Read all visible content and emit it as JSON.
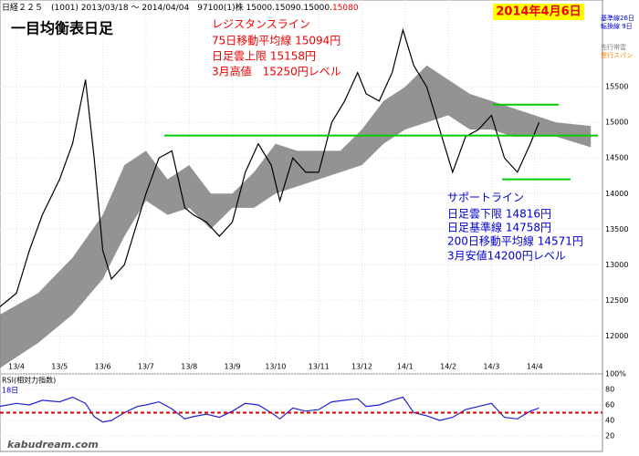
{
  "header": {
    "main": "日経２２５　(1001)  2013/03/18 ～ 2014/04/04　97100(1)株 15000.15090.15000.",
    "last": "15080"
  },
  "date": "2014年4月6日",
  "watermark": "kabudream.com",
  "resistance": [
    "レジスタンスライン",
    "75日移動平均線 15094円",
    "日足雲上限 15158円",
    "3月高値　15250円レベル"
  ],
  "support": [
    "サポートライン",
    "日足雲下限 14816円",
    "日足基準線 14758円",
    "200日移動平均線 14571円",
    "3月安値14200円レベル"
  ],
  "chart_data": [
    {
      "type": "line",
      "title": "一目均衡表日足",
      "color": "#000000",
      "legend": [
        {
          "label": "基準線26日",
          "color": "#0000cc"
        },
        {
          "label": "転換線 9日",
          "color": "#0000cc"
        },
        {
          "label": "先行帯雲",
          "color": "#808080"
        },
        {
          "label": "遅行スパン",
          "color": "#ff8800"
        }
      ],
      "x": [
        3.6,
        4.0,
        4.3,
        4.6,
        5.0,
        5.3,
        5.6,
        5.8,
        6.0,
        6.2,
        6.5,
        6.8,
        7.0,
        7.3,
        7.6,
        7.9,
        8.1,
        8.4,
        8.7,
        9.0,
        9.3,
        9.6,
        9.9,
        10.1,
        10.4,
        10.7,
        11.0,
        11.3,
        11.6,
        11.9,
        12.1,
        12.4,
        12.7,
        12.95,
        13.2,
        13.5,
        13.8,
        14.1,
        14.4,
        14.7,
        15.0,
        15.3,
        15.6,
        15.9,
        16.1
      ],
      "values": [
        12400,
        12600,
        13200,
        13700,
        14200,
        14700,
        15600,
        14500,
        13200,
        12800,
        13000,
        13600,
        14000,
        14500,
        14600,
        13800,
        13700,
        13600,
        13400,
        13600,
        14300,
        14700,
        14400,
        13900,
        14500,
        14300,
        14300,
        15000,
        15300,
        15700,
        15400,
        15300,
        15700,
        16300,
        15800,
        15500,
        14900,
        14300,
        14800,
        14900,
        15100,
        14500,
        14300,
        14700,
        15000
      ],
      "cloud": {
        "x": [
          3.62,
          4.5,
          5.3,
          6.0,
          6.5,
          7.0,
          7.5,
          8.0,
          8.5,
          9.0,
          9.5,
          10.0,
          10.5,
          11.0,
          11.5,
          12.0,
          12.5,
          13.0,
          13.5,
          14.0,
          14.5,
          15.0,
          15.5,
          16.0,
          16.5,
          17.3
        ],
        "upper": [
          12300,
          12600,
          13100,
          13700,
          14400,
          14600,
          14200,
          14400,
          14000,
          14000,
          14300,
          14700,
          14600,
          14600,
          14600,
          14900,
          15300,
          15500,
          15800,
          15600,
          15400,
          15300,
          15200,
          15100,
          15000,
          14950
        ],
        "lower": [
          11550,
          11900,
          12300,
          12800,
          13400,
          13900,
          13700,
          13800,
          13500,
          13800,
          13800,
          14000,
          14100,
          14200,
          14300,
          14400,
          14700,
          14900,
          15000,
          15100,
          14900,
          14900,
          14800,
          14800,
          14800,
          14650
        ]
      },
      "levels": [
        {
          "value": 14816,
          "color": "#00cc00"
        },
        {
          "value": 15250,
          "color": "#00cc00"
        },
        {
          "value": 14200,
          "color": "#00cc00"
        }
      ],
      "xlim": [
        3.62,
        17.57
      ],
      "ylim": [
        11530,
        16720
      ],
      "yticks": [
        12000,
        12500,
        13000,
        13500,
        14000,
        14500,
        15000,
        15500
      ],
      "xticks": [
        {
          "value": 4,
          "label": "13/4"
        },
        {
          "value": 5,
          "label": "13/5"
        },
        {
          "value": 6,
          "label": "13/6"
        },
        {
          "value": 7,
          "label": "13/7"
        },
        {
          "value": 8,
          "label": "13/8"
        },
        {
          "value": 9,
          "label": "13/9"
        },
        {
          "value": 10,
          "label": "13/10"
        },
        {
          "value": 11,
          "label": "13/11"
        },
        {
          "value": 12,
          "label": "13/12"
        },
        {
          "value": 13,
          "label": "14/1"
        },
        {
          "value": 14,
          "label": "14/2"
        },
        {
          "value": 15,
          "label": "14/3"
        },
        {
          "value": 16,
          "label": "14/4"
        }
      ],
      "grid": true
    },
    {
      "type": "line",
      "title": "RSI(相対力指数)",
      "subtitle": "18日",
      "color": "#2222cc",
      "x": [
        3.6,
        4.0,
        4.3,
        4.6,
        5.0,
        5.3,
        5.6,
        5.8,
        6.0,
        6.2,
        6.5,
        6.8,
        7.0,
        7.3,
        7.6,
        7.9,
        8.1,
        8.4,
        8.7,
        9.0,
        9.3,
        9.6,
        9.9,
        10.1,
        10.4,
        10.7,
        11.0,
        11.3,
        11.6,
        11.9,
        12.1,
        12.4,
        12.7,
        12.95,
        13.2,
        13.5,
        13.8,
        14.1,
        14.4,
        14.7,
        15.0,
        15.3,
        15.6,
        15.9,
        16.1
      ],
      "values": [
        58,
        62,
        60,
        66,
        64,
        70,
        62,
        45,
        38,
        40,
        50,
        58,
        60,
        64,
        55,
        42,
        45,
        48,
        44,
        52,
        62,
        60,
        50,
        42,
        56,
        52,
        54,
        64,
        66,
        68,
        58,
        60,
        66,
        70,
        50,
        46,
        40,
        44,
        54,
        58,
        62,
        44,
        42,
        52,
        56
      ],
      "reference": {
        "value": 50,
        "color": "#dd0000"
      },
      "xlim": [
        3.62,
        17.57
      ],
      "ylim": [
        0,
        100
      ],
      "yticks": [
        {
          "value": 100,
          "label": "100%"
        },
        80,
        60,
        40,
        20
      ]
    }
  ]
}
